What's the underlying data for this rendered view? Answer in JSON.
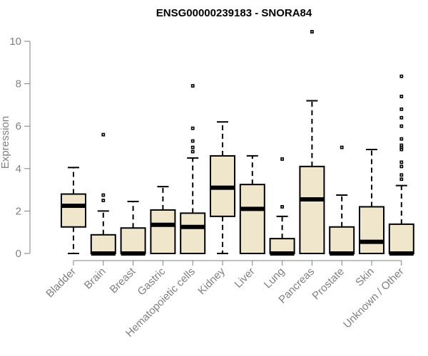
{
  "chart_data": {
    "type": "boxplot",
    "title": "ENSG00000239183 - SNORA84",
    "ylabel": "Expression",
    "xlabel": "",
    "ylim": [
      0,
      10.5
    ],
    "yticks": [
      "0",
      "2",
      "4",
      "6",
      "8",
      "10"
    ],
    "colors": {
      "box_fill": "#efe6cc",
      "box_stroke": "#000000",
      "axis": "#808080"
    },
    "categories": [
      "Bladder",
      "Brain",
      "Breast",
      "Gastric",
      "Hematopoietic cells",
      "Kidney",
      "Liver",
      "Lung",
      "Pancreas",
      "Prostate",
      "Skin",
      "Unknown / Other"
    ],
    "boxes": [
      {
        "min": 0,
        "q1": 1.25,
        "median": 2.25,
        "q3": 2.8,
        "max": 4.05,
        "outliers": []
      },
      {
        "min": 0,
        "q1": 0,
        "median": 0,
        "q3": 0.88,
        "max": 2.0,
        "outliers": [
          2.5,
          2.75,
          5.6
        ]
      },
      {
        "min": 0,
        "q1": 0,
        "median": 0,
        "q3": 1.2,
        "max": 2.45,
        "outliers": []
      },
      {
        "min": 0,
        "q1": 0,
        "median": 1.35,
        "q3": 2.05,
        "max": 3.15,
        "outliers": []
      },
      {
        "min": 0,
        "q1": 0,
        "median": 1.25,
        "q3": 1.9,
        "max": 4.5,
        "outliers": [
          4.8,
          5.0,
          5.3,
          5.9,
          7.9
        ]
      },
      {
        "min": 0,
        "q1": 1.75,
        "median": 3.1,
        "q3": 4.6,
        "max": 6.2,
        "outliers": []
      },
      {
        "min": 0,
        "q1": 0,
        "median": 2.1,
        "q3": 3.25,
        "max": 4.6,
        "outliers": []
      },
      {
        "min": 0,
        "q1": 0,
        "median": 0,
        "q3": 0.7,
        "max": 1.75,
        "outliers": [
          2.2,
          4.45
        ]
      },
      {
        "min": 0,
        "q1": 0,
        "median": 2.55,
        "q3": 4.1,
        "max": 7.2,
        "outliers": [
          10.45
        ]
      },
      {
        "min": 0,
        "q1": 0,
        "median": 0,
        "q3": 1.25,
        "max": 2.75,
        "outliers": [
          5.0
        ]
      },
      {
        "min": 0,
        "q1": 0,
        "median": 0.55,
        "q3": 2.2,
        "max": 4.9,
        "outliers": []
      },
      {
        "min": 0,
        "q1": 0,
        "median": 0,
        "q3": 1.38,
        "max": 3.2,
        "outliers": [
          3.5,
          3.7,
          4.1,
          4.3,
          4.9,
          5.0,
          5.1,
          5.4,
          6.0,
          6.4,
          6.8,
          7.4,
          8.35
        ]
      }
    ]
  }
}
